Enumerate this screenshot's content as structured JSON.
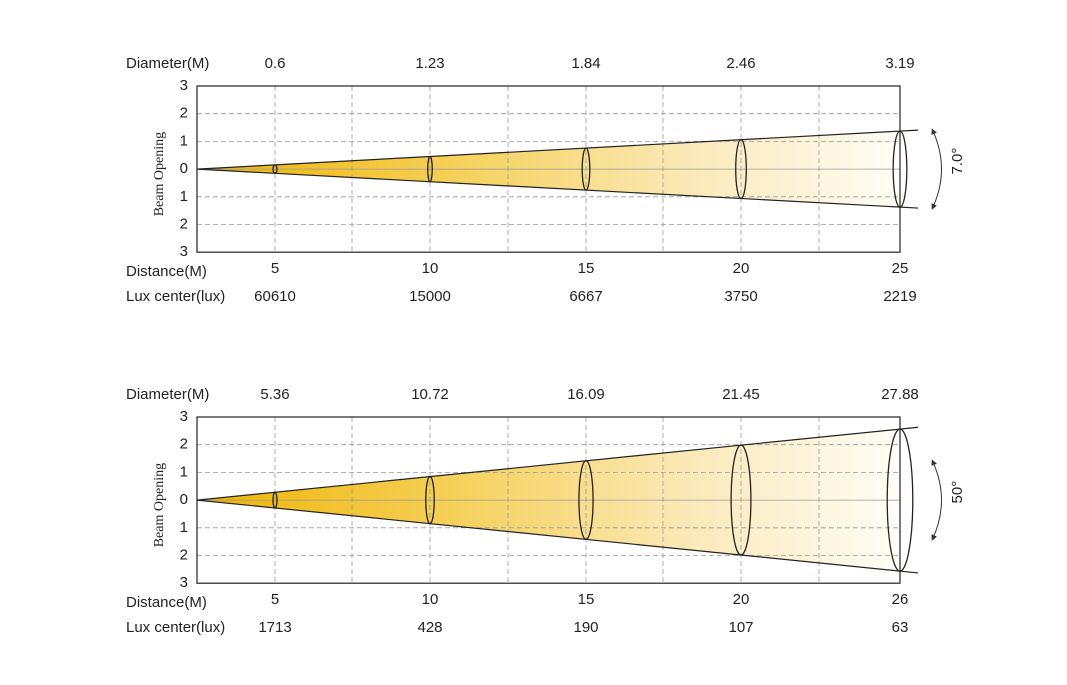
{
  "panels": [
    {
      "diameter_label": "Diameter(M)",
      "diameters": [
        "0.6",
        "1.23",
        "1.84",
        "2.46",
        "3.19"
      ],
      "y_labels": [
        "3",
        "2",
        "1",
        "0",
        "1",
        "2",
        "3"
      ],
      "y_title": "Beam Opening",
      "distance_label": "Distance(M)",
      "distances": [
        "5",
        "10",
        "15",
        "20",
        "25"
      ],
      "lux_label": "Lux center(lux)",
      "lux": [
        "60610",
        "15000",
        "6667",
        "3750",
        "2219"
      ],
      "angle": "7.0°"
    },
    {
      "diameter_label": "Diameter(M)",
      "diameters": [
        "5.36",
        "10.72",
        "16.09",
        "21.45",
        "27.88"
      ],
      "y_labels": [
        "3",
        "2",
        "1",
        "0",
        "1",
        "2",
        "3"
      ],
      "y_title": "Beam Opening",
      "distance_label": "Distance(M)",
      "distances": [
        "5",
        "10",
        "15",
        "20",
        "26"
      ],
      "lux_label": "Lux center(lux)",
      "lux": [
        "1713",
        "428",
        "190",
        "107",
        "63"
      ],
      "angle": "50°"
    }
  ]
}
